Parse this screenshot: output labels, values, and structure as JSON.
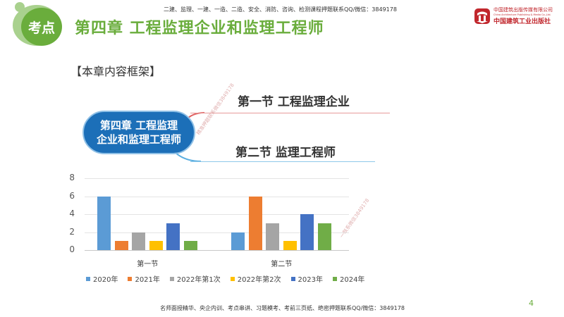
{
  "header": {
    "badge_label": "考点",
    "title": "第四章  工程监理企业和监理工程师",
    "top_note": "二建、监理、一建、一造、二造、安全、消防、咨询、检测课程押题联系QQ/微信：3849178",
    "logo": {
      "line1": "中国建筑出版传媒有限公司",
      "line2": "China Architecture Publishing & Media Co.,Ltd.",
      "line3": "中国建筑工业出版社"
    }
  },
  "section_heading": "【本章内容框架】",
  "mind_map": {
    "center_line1": "第四章 工程监理",
    "center_line2": "企业和监理工程师",
    "branches": [
      {
        "label": "第一节 工程监理企业",
        "line_color": "#e69a9a"
      },
      {
        "label": "第二节 监理工程师",
        "line_color": "#8fc8ea"
      }
    ]
  },
  "watermarks": [
    "精准押题联系微信3849178",
    "一联系微信3849178"
  ],
  "chart_data": {
    "type": "bar",
    "title": "",
    "xlabel": "",
    "ylabel": "",
    "categories": [
      "第一节",
      "第二节"
    ],
    "series": [
      {
        "name": "2020年",
        "color": "#5b9bd5",
        "values": [
          6,
          2
        ]
      },
      {
        "name": "2021年",
        "color": "#ed7d31",
        "values": [
          1,
          6
        ]
      },
      {
        "name": "2022年第1次",
        "color": "#a5a5a5",
        "values": [
          2,
          3
        ]
      },
      {
        "name": "2022年第2次",
        "color": "#ffc000",
        "values": [
          1,
          1
        ]
      },
      {
        "name": "2023年",
        "color": "#4472c4",
        "values": [
          3,
          4
        ]
      },
      {
        "name": "2024年",
        "color": "#70ad47",
        "values": [
          1,
          3
        ]
      }
    ],
    "y_ticks": [
      "0",
      "2",
      "4",
      "6",
      "8"
    ],
    "ylim": [
      0,
      8
    ],
    "grid": true,
    "legend_position": "bottom"
  },
  "footer": {
    "note": "名师面授精华、央企内训、考点串讲、习题模考、考前三页纸、绝密押题联系QQ/微信：3849178",
    "page_number": "4"
  }
}
